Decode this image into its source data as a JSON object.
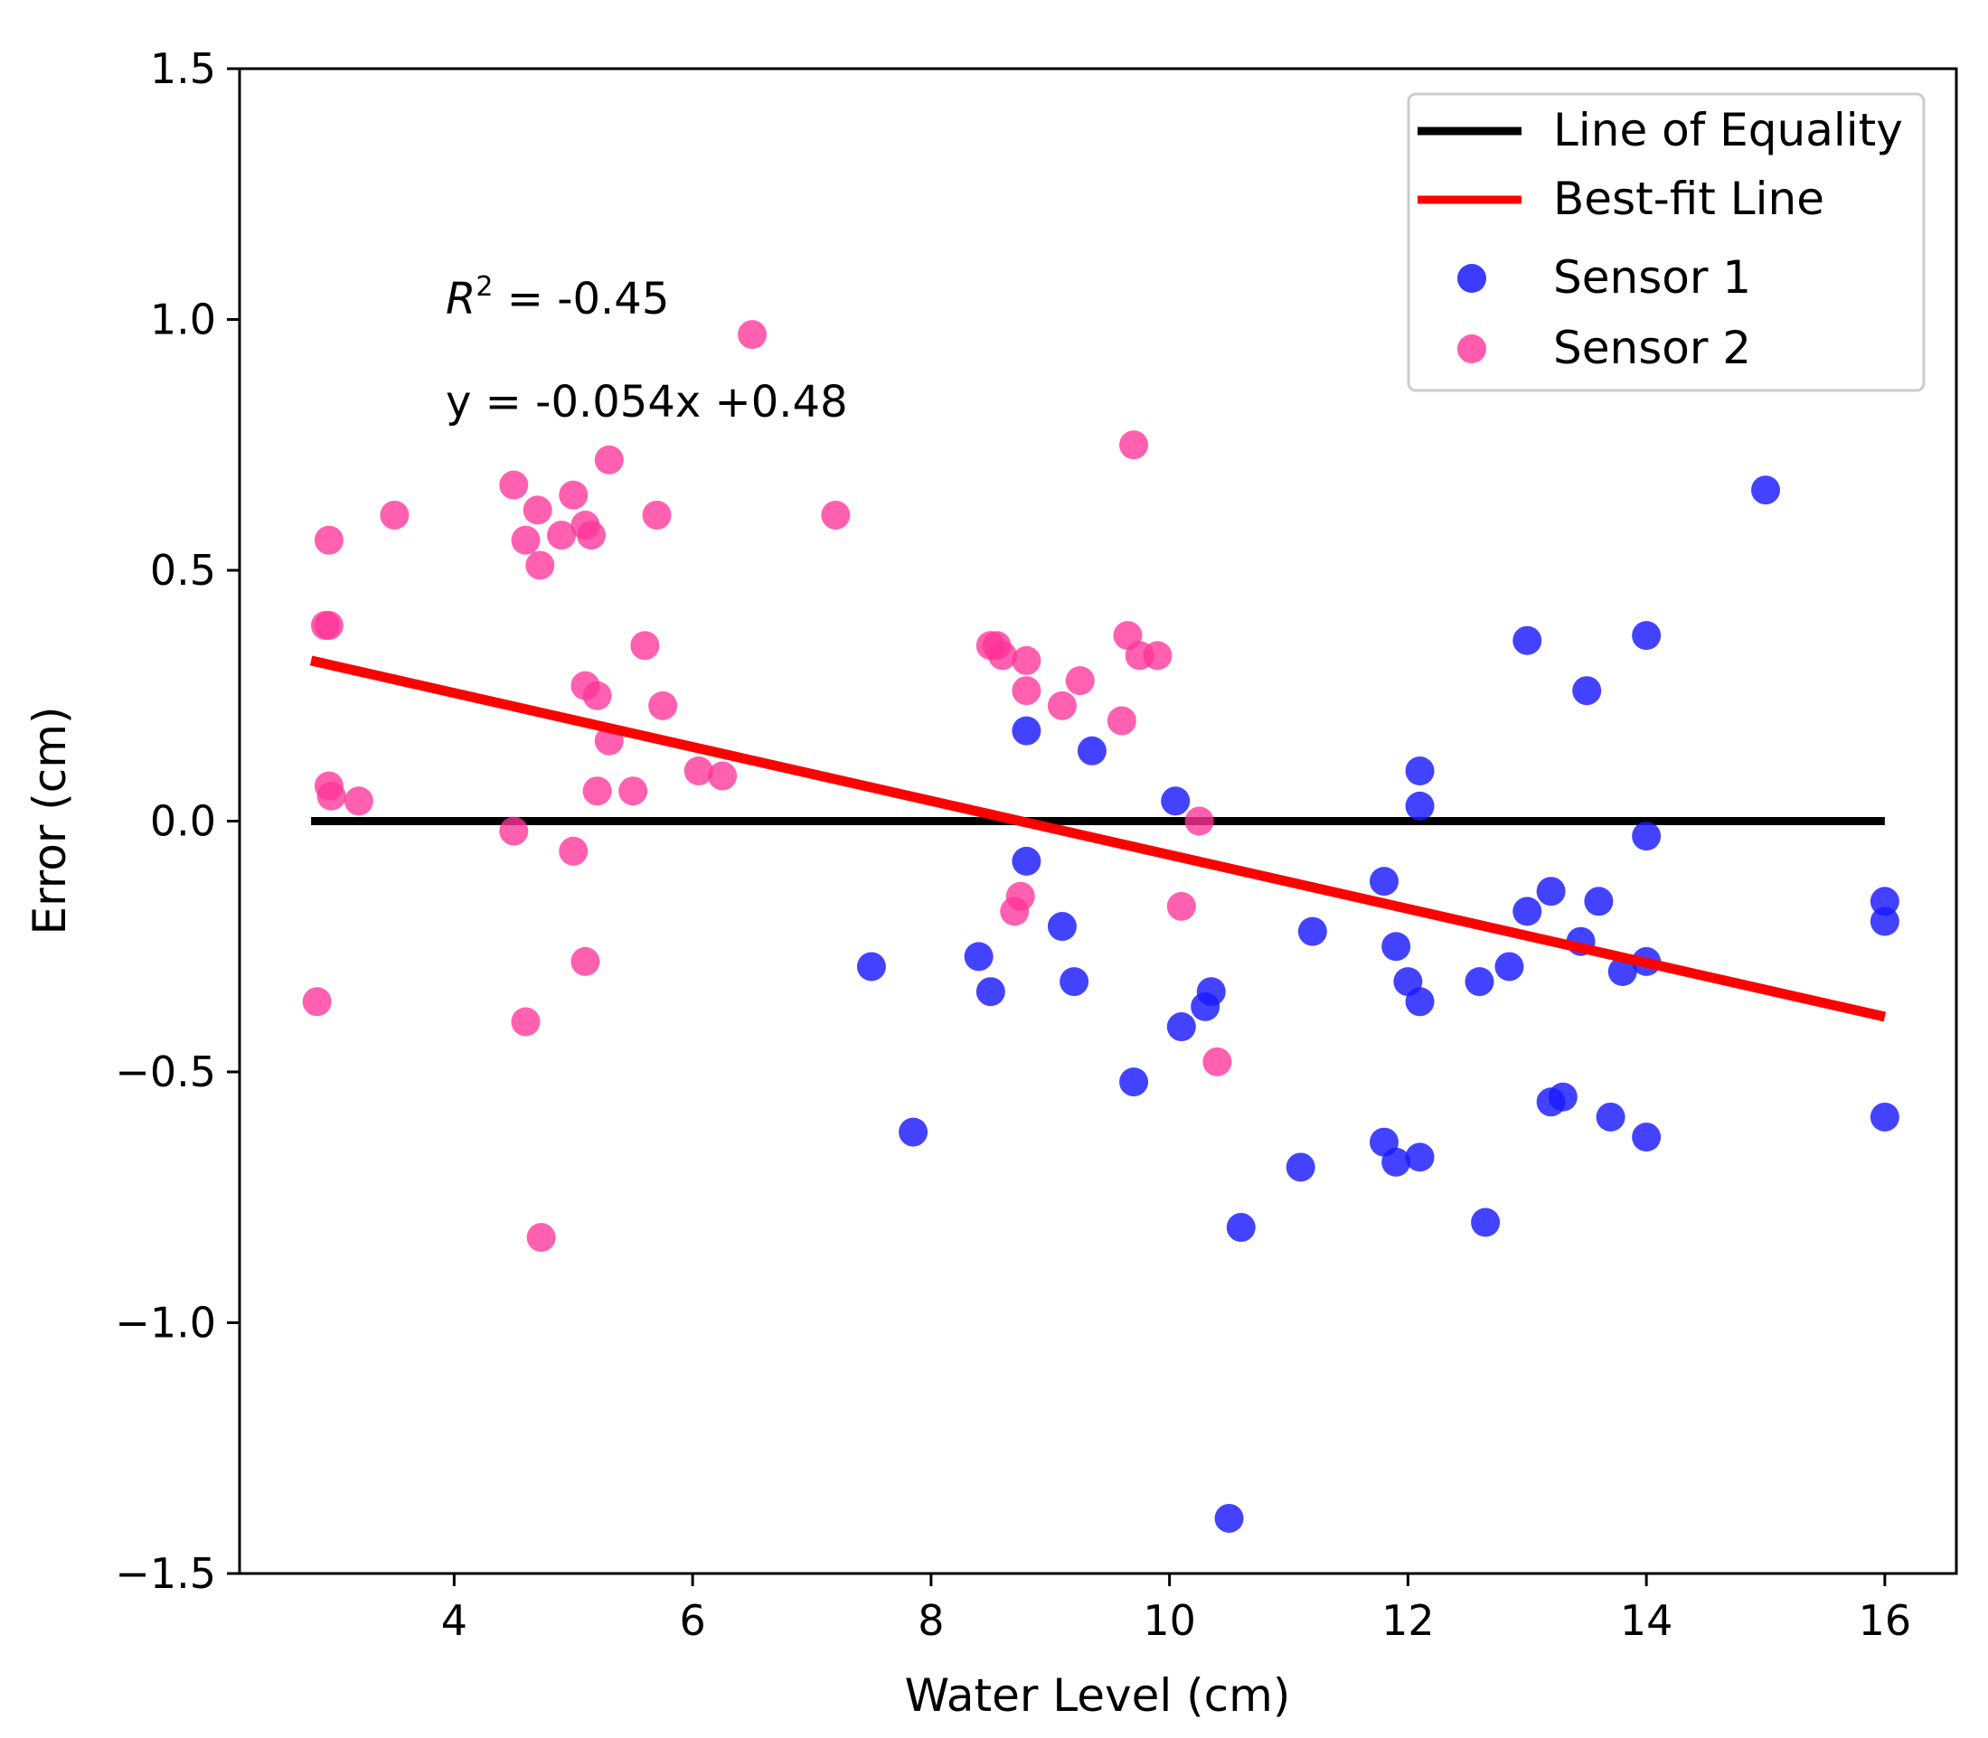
{
  "chart_data": {
    "type": "scatter",
    "xlabel": "Water Level (cm)",
    "ylabel": "Error (cm)",
    "xlim": [
      2.2,
      16.6
    ],
    "ylim": [
      -1.5,
      1.5
    ],
    "x_ticks": [
      4,
      6,
      8,
      10,
      12,
      14,
      16
    ],
    "x_tick_labels": [
      "4",
      "6",
      "8",
      "10",
      "12",
      "14",
      "16"
    ],
    "y_ticks": [
      -1.5,
      -1.0,
      -0.5,
      0.0,
      0.5,
      1.0,
      1.5
    ],
    "y_tick_labels": [
      "−1.5",
      "−1.0",
      "−0.5",
      "0.0",
      "0.5",
      "1.0",
      "1.5"
    ],
    "grid": false,
    "legend": {
      "position": "top-right",
      "entries": [
        {
          "label": "Line of Equality",
          "kind": "line",
          "color": "#000000"
        },
        {
          "label": "Best-fit Line",
          "kind": "line",
          "color": "#ff0000"
        },
        {
          "label": "Sensor 1",
          "kind": "marker",
          "color": "#1a1aff"
        },
        {
          "label": "Sensor 2",
          "kind": "marker",
          "color": "#ff3399"
        }
      ]
    },
    "annotations": {
      "r2_prefix": "R",
      "r2_superscript": "2",
      "r2_value": " = -0.45",
      "equation": "y = -0.054x +0.48"
    },
    "lines": [
      {
        "name": "Line of Equality",
        "color": "#000000",
        "x": [
          2.8,
          16.0
        ],
        "y": [
          0.0,
          0.0
        ]
      },
      {
        "name": "Best-fit Line",
        "color": "#ff0000",
        "x": [
          2.8,
          16.0
        ],
        "y": [
          0.32,
          -0.39
        ]
      }
    ],
    "series": [
      {
        "name": "Sensor 1",
        "color": "#1a1aff",
        "points": [
          [
            7.5,
            -0.29
          ],
          [
            7.85,
            -0.62
          ],
          [
            8.4,
            -0.27
          ],
          [
            8.5,
            -0.34
          ],
          [
            8.8,
            0.18
          ],
          [
            8.8,
            -0.08
          ],
          [
            9.1,
            -0.21
          ],
          [
            9.2,
            -0.32
          ],
          [
            9.35,
            0.14
          ],
          [
            9.7,
            -0.52
          ],
          [
            10.05,
            0.04
          ],
          [
            10.1,
            -0.41
          ],
          [
            10.3,
            -0.37
          ],
          [
            10.35,
            -0.34
          ],
          [
            10.5,
            -1.39
          ],
          [
            10.6,
            -0.81
          ],
          [
            11.1,
            -0.69
          ],
          [
            11.2,
            -0.22
          ],
          [
            11.8,
            -0.12
          ],
          [
            11.8,
            -0.64
          ],
          [
            11.9,
            -0.25
          ],
          [
            11.9,
            -0.68
          ],
          [
            12.0,
            -0.32
          ],
          [
            12.1,
            0.1
          ],
          [
            12.1,
            0.03
          ],
          [
            12.1,
            -0.36
          ],
          [
            12.1,
            -0.67
          ],
          [
            12.6,
            -0.32
          ],
          [
            12.65,
            -0.8
          ],
          [
            12.85,
            -0.29
          ],
          [
            13.0,
            0.36
          ],
          [
            13.0,
            -0.18
          ],
          [
            13.2,
            -0.14
          ],
          [
            13.2,
            -0.56
          ],
          [
            13.3,
            -0.55
          ],
          [
            13.45,
            -0.24
          ],
          [
            13.5,
            0.26
          ],
          [
            13.6,
            -0.16
          ],
          [
            13.7,
            -0.59
          ],
          [
            13.8,
            -0.3
          ],
          [
            14.0,
            0.37
          ],
          [
            14.0,
            -0.03
          ],
          [
            14.0,
            -0.28
          ],
          [
            14.0,
            -0.63
          ],
          [
            15.0,
            0.66
          ],
          [
            16.0,
            -0.16
          ],
          [
            16.0,
            -0.2
          ],
          [
            16.0,
            -0.59
          ]
        ]
      },
      {
        "name": "Sensor 2",
        "color": "#ff3399",
        "points": [
          [
            2.85,
            -0.36
          ],
          [
            2.95,
            0.56
          ],
          [
            2.92,
            0.39
          ],
          [
            2.95,
            0.39
          ],
          [
            2.95,
            0.07
          ],
          [
            2.97,
            0.05
          ],
          [
            3.2,
            0.04
          ],
          [
            3.5,
            0.61
          ],
          [
            4.5,
            0.67
          ],
          [
            4.5,
            -0.02
          ],
          [
            4.6,
            0.56
          ],
          [
            4.6,
            -0.4
          ],
          [
            4.7,
            0.62
          ],
          [
            4.72,
            0.51
          ],
          [
            4.73,
            -0.83
          ],
          [
            4.9,
            0.57
          ],
          [
            5.0,
            0.65
          ],
          [
            5.0,
            -0.06
          ],
          [
            5.1,
            0.59
          ],
          [
            5.1,
            0.27
          ],
          [
            5.1,
            -0.28
          ],
          [
            5.15,
            0.57
          ],
          [
            5.2,
            0.25
          ],
          [
            5.2,
            0.06
          ],
          [
            5.3,
            0.72
          ],
          [
            5.3,
            0.16
          ],
          [
            5.5,
            0.06
          ],
          [
            5.6,
            0.35
          ],
          [
            5.7,
            0.61
          ],
          [
            5.75,
            0.23
          ],
          [
            6.05,
            0.1
          ],
          [
            6.25,
            0.09
          ],
          [
            6.5,
            0.97
          ],
          [
            7.2,
            0.61
          ],
          [
            8.5,
            0.35
          ],
          [
            8.55,
            0.35
          ],
          [
            8.6,
            0.33
          ],
          [
            8.7,
            -0.18
          ],
          [
            8.75,
            -0.15
          ],
          [
            8.8,
            0.32
          ],
          [
            8.8,
            0.26
          ],
          [
            9.1,
            0.23
          ],
          [
            9.25,
            0.28
          ],
          [
            9.6,
            0.2
          ],
          [
            9.65,
            0.37
          ],
          [
            9.7,
            0.75
          ],
          [
            9.75,
            0.33
          ],
          [
            9.9,
            0.33
          ],
          [
            10.1,
            -0.17
          ],
          [
            10.25,
            0.0
          ],
          [
            10.4,
            -0.48
          ]
        ]
      }
    ]
  }
}
